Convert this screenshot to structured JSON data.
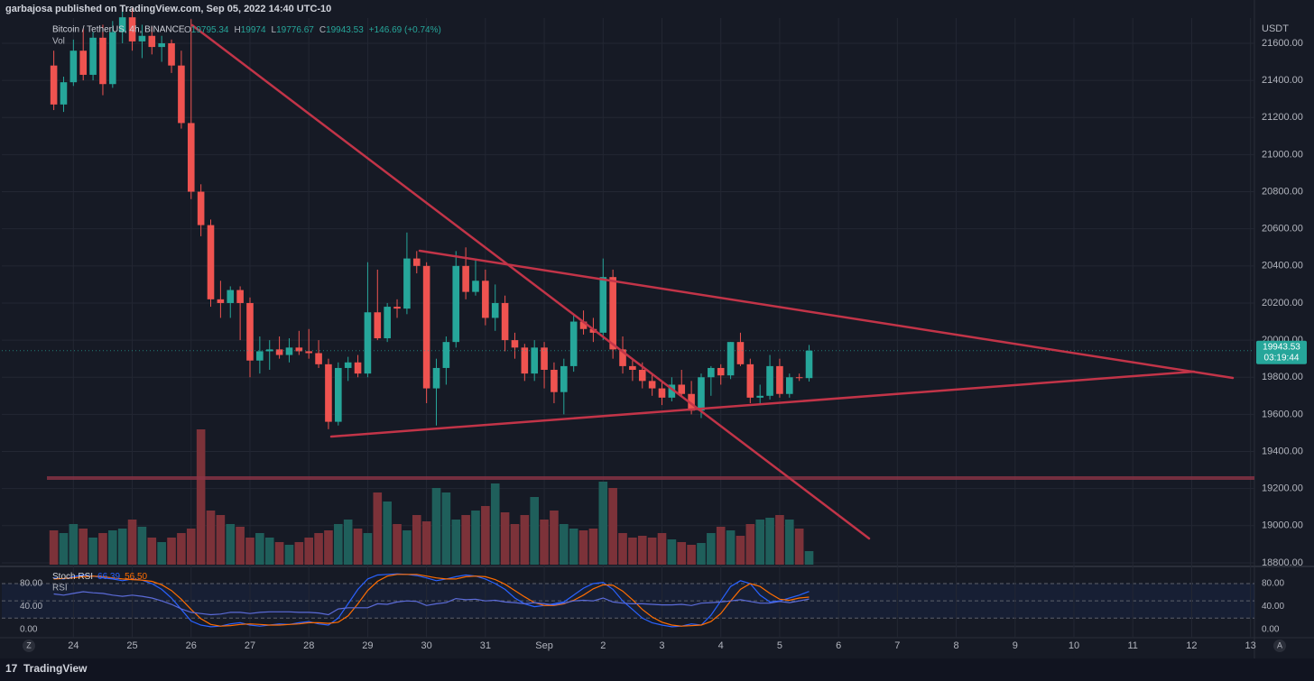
{
  "header": {
    "publisher": "garbajosa published on TradingView.com, Sep 05, 2022 14:40 UTC-10"
  },
  "footer": {
    "brand": "TradingView",
    "left_button": "Z",
    "right_button": "A"
  },
  "chart_data": [
    {
      "type": "candlestick",
      "title": "Bitcoin / TetherUS, 4h, BINANCE",
      "ohlc_letters": [
        "O",
        "H",
        "L",
        "C"
      ],
      "change": "+146.69 (+0.74%)",
      "volume_label": "Vol",
      "y_unit": "USDT",
      "countdown": "03:19:44",
      "up_color": "#26a69a",
      "down_color": "#ef5350",
      "volume_up_color": "#1f5f5b",
      "volume_down_color": "#7c3239",
      "open": [
        21480,
        21270,
        21390,
        21560,
        21430,
        21630,
        21380,
        21660,
        21740,
        21610,
        21640,
        21580,
        21600,
        21480,
        21170,
        20800,
        20620,
        20220,
        20200,
        20270,
        20200,
        19890,
        19940,
        19950,
        19920,
        19960,
        19940,
        19930,
        19870,
        19560,
        19850,
        19880,
        19820,
        20150,
        20010,
        20180,
        20170,
        20440,
        20400,
        19740,
        19850,
        19990,
        20400,
        20260,
        20320,
        20120,
        20200,
        20000,
        19960,
        19820,
        19960,
        19840,
        19720,
        19860,
        20100,
        20060,
        20040,
        20340,
        19950,
        19860,
        19840,
        19780,
        19740,
        19690,
        19760,
        19710,
        19620,
        19800,
        19850,
        19810,
        19990,
        19870,
        19690,
        19700,
        19860,
        19710,
        19800,
        19795.34
      ],
      "high": [
        21560,
        21420,
        21620,
        21680,
        21660,
        21700,
        21720,
        21800,
        21790,
        21700,
        21690,
        21640,
        21620,
        21560,
        21730,
        20840,
        20650,
        20320,
        20290,
        20290,
        20230,
        20020,
        20000,
        20020,
        20010,
        20050,
        20060,
        20000,
        19900,
        19880,
        19910,
        19920,
        20420,
        20380,
        20200,
        20220,
        20580,
        20480,
        20420,
        19900,
        20020,
        20480,
        20500,
        20440,
        20380,
        20300,
        20240,
        20040,
        19980,
        20000,
        19990,
        19880,
        19900,
        20140,
        20160,
        20120,
        20440,
        20380,
        20020,
        19900,
        19880,
        19820,
        19780,
        19800,
        19840,
        19780,
        19820,
        19860,
        19870,
        19990,
        20040,
        19900,
        19760,
        19920,
        19900,
        19820,
        19820,
        19974
      ],
      "low": [
        21240,
        21230,
        21370,
        21400,
        21400,
        21320,
        21360,
        21600,
        21560,
        21520,
        21540,
        21500,
        21440,
        21140,
        20760,
        20560,
        20180,
        20120,
        20120,
        20000,
        19800,
        19820,
        19840,
        19900,
        19880,
        19920,
        19900,
        19850,
        19520,
        19540,
        19780,
        19800,
        19800,
        20000,
        19990,
        20120,
        20140,
        20360,
        19660,
        19540,
        19760,
        19960,
        20220,
        20240,
        20080,
        20050,
        19940,
        19900,
        19780,
        19780,
        19740,
        19660,
        19600,
        19830,
        20030,
        19990,
        20000,
        19900,
        19820,
        19780,
        19740,
        19700,
        19650,
        19670,
        19700,
        19600,
        19580,
        19700,
        19760,
        19790,
        19860,
        19660,
        19650,
        19680,
        19690,
        19690,
        19780,
        19776.67
      ],
      "close": [
        21270,
        21390,
        21560,
        21430,
        21630,
        21380,
        21660,
        21740,
        21610,
        21640,
        21580,
        21600,
        21480,
        21170,
        20800,
        20620,
        20220,
        20200,
        20270,
        20200,
        19890,
        19940,
        19950,
        19920,
        19960,
        19940,
        19930,
        19870,
        19560,
        19850,
        19880,
        19820,
        20150,
        20010,
        20180,
        20170,
        20440,
        20400,
        19740,
        19850,
        19990,
        20400,
        20260,
        20320,
        20120,
        20200,
        20000,
        19960,
        19820,
        19960,
        19840,
        19720,
        19860,
        20100,
        20060,
        20040,
        20340,
        19950,
        19860,
        19840,
        19780,
        19740,
        19690,
        19760,
        19710,
        19620,
        19800,
        19850,
        19810,
        19990,
        19870,
        19690,
        19700,
        19860,
        19710,
        19800,
        19795.34,
        19943.53
      ],
      "volume": [
        38,
        35,
        45,
        40,
        30,
        35,
        38,
        40,
        50,
        42,
        30,
        25,
        30,
        35,
        40,
        150,
        60,
        55,
        45,
        42,
        30,
        35,
        30,
        25,
        22,
        25,
        30,
        35,
        38,
        45,
        50,
        40,
        35,
        80,
        70,
        45,
        38,
        55,
        48,
        85,
        80,
        50,
        55,
        60,
        65,
        90,
        58,
        45,
        55,
        75,
        50,
        60,
        45,
        40,
        38,
        40,
        92,
        85,
        35,
        30,
        32,
        30,
        35,
        28,
        25,
        22,
        24,
        35,
        42,
        38,
        32,
        45,
        50,
        52,
        55,
        50,
        40,
        15
      ],
      "xlim": [
        -5.3,
        122.4
      ],
      "ylim": [
        18790,
        21736
      ],
      "yticks": [
        {
          "value": 18800,
          "label": "18800.00"
        },
        {
          "value": 19000,
          "label": "19000.00"
        },
        {
          "value": 19200,
          "label": "19200.00"
        },
        {
          "value": 19400,
          "label": "19400.00"
        },
        {
          "value": 19600,
          "label": "19600.00"
        },
        {
          "value": 19800,
          "label": "19800.00"
        },
        {
          "value": 20000,
          "label": "20000.00"
        },
        {
          "value": 20200,
          "label": "20200.00"
        },
        {
          "value": 20400,
          "label": "20400.00"
        },
        {
          "value": 20600,
          "label": "20600.00"
        },
        {
          "value": 20800,
          "label": "20800.00"
        },
        {
          "value": 21000,
          "label": "21000.00"
        },
        {
          "value": 21200,
          "label": "21200.00"
        },
        {
          "value": 21400,
          "label": "21400.00"
        },
        {
          "value": 21600,
          "label": "21600.00"
        }
      ],
      "grid": true
    },
    {
      "type": "line",
      "xlim": [
        -5.3,
        122.4
      ],
      "ylim": [
        -14,
        102
      ],
      "yticks": [
        {
          "value": 0,
          "label": "0.00"
        },
        {
          "value": 40,
          "label": "40.00"
        },
        {
          "value": 80,
          "label": "80.00"
        }
      ],
      "levels": [
        80,
        50,
        20
      ],
      "xticks": [
        {
          "value": 2,
          "label": "24"
        },
        {
          "value": 8,
          "label": "25"
        },
        {
          "value": 14,
          "label": "26"
        },
        {
          "value": 20,
          "label": "27"
        },
        {
          "value": 26,
          "label": "28"
        },
        {
          "value": 32,
          "label": "29"
        },
        {
          "value": 38,
          "label": "30"
        },
        {
          "value": 44,
          "label": "31"
        },
        {
          "value": 50,
          "label": "Sep"
        },
        {
          "value": 56,
          "label": "2"
        },
        {
          "value": 62,
          "label": "3"
        },
        {
          "value": 68,
          "label": "4"
        },
        {
          "value": 74,
          "label": "5"
        },
        {
          "value": 80,
          "label": "6"
        },
        {
          "value": 86,
          "label": "7"
        },
        {
          "value": 92,
          "label": "8"
        },
        {
          "value": 98,
          "label": "9"
        },
        {
          "value": 104,
          "label": "10"
        },
        {
          "value": 110,
          "label": "11"
        },
        {
          "value": 116,
          "label": "12"
        },
        {
          "value": 122,
          "label": "13"
        }
      ],
      "series": [
        {
          "name": "Stoch RSI",
          "color": "#2962ff",
          "values": [
            90,
            88,
            92,
            95,
            93,
            90,
            88,
            85,
            88,
            86,
            80,
            70,
            55,
            35,
            15,
            8,
            5,
            6,
            10,
            12,
            8,
            6,
            8,
            10,
            9,
            12,
            14,
            10,
            8,
            20,
            45,
            70,
            88,
            95,
            96,
            97,
            96,
            94,
            90,
            85,
            88,
            92,
            95,
            93,
            88,
            80,
            70,
            55,
            45,
            40,
            42,
            45,
            48,
            60,
            72,
            80,
            82,
            70,
            50,
            35,
            20,
            12,
            8,
            5,
            6,
            10,
            8,
            25,
            50,
            75,
            85,
            80,
            60,
            48,
            50,
            55,
            60,
            66.39
          ]
        },
        {
          "color": "#ff6d00",
          "last_label": "56.50",
          "values": [
            88,
            89,
            90,
            92,
            93,
            92,
            90,
            88,
            87,
            86,
            84,
            78,
            68,
            53,
            35,
            19,
            9,
            6,
            7,
            9,
            10,
            9,
            8,
            8,
            9,
            10,
            12,
            12,
            11,
            13,
            24,
            45,
            68,
            84,
            93,
            96,
            96,
            96,
            93,
            90,
            88,
            88,
            92,
            93,
            92,
            87,
            79,
            68,
            57,
            47,
            42,
            42,
            45,
            51,
            60,
            71,
            78,
            77,
            67,
            52,
            35,
            22,
            13,
            8,
            6,
            7,
            8,
            14,
            28,
            50,
            70,
            80,
            75,
            63,
            53,
            51,
            55,
            56.5
          ]
        },
        {
          "name": "RSI",
          "color": "#5b6bd8",
          "values": [
            62,
            60,
            63,
            66,
            64,
            63,
            60,
            58,
            60,
            58,
            55,
            50,
            44,
            36,
            30,
            28,
            26,
            27,
            30,
            30,
            28,
            30,
            31,
            31,
            31,
            30,
            30,
            29,
            26,
            36,
            38,
            38,
            38,
            45,
            44,
            48,
            50,
            49,
            42,
            45,
            47,
            54,
            52,
            53,
            50,
            51,
            48,
            47,
            45,
            47,
            45,
            43,
            46,
            50,
            51,
            50,
            55,
            48,
            46,
            45,
            45,
            44,
            43,
            43,
            44,
            42,
            46,
            47,
            48,
            50,
            52,
            49,
            46,
            46,
            49,
            47,
            50,
            53.3
          ]
        }
      ],
      "grid": true
    }
  ]
}
